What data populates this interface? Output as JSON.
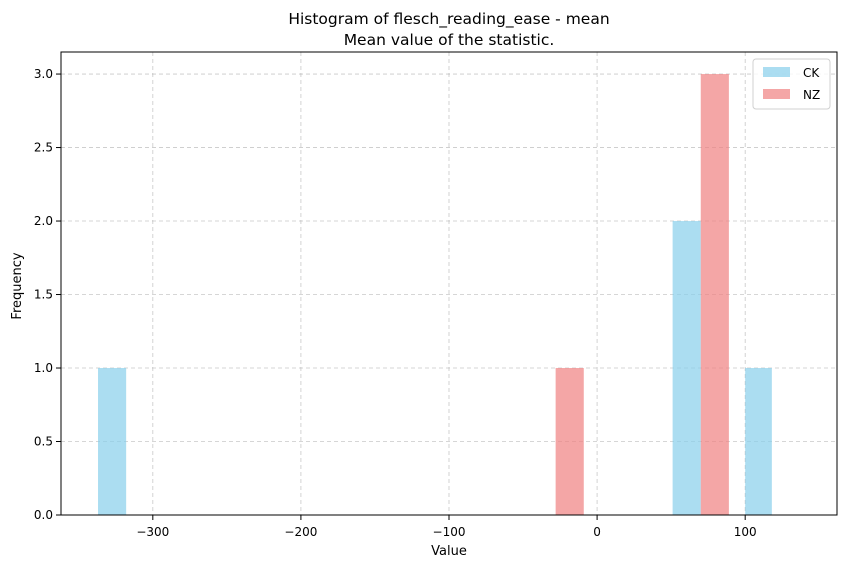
{
  "chart_data": {
    "type": "bar",
    "title": "Histogram of flesch_reading_ease - mean",
    "subtitle": "Mean value of the statistic.",
    "xlabel": "Value",
    "ylabel": "Frequency",
    "xlim": [
      -362,
      162
    ],
    "ylim": [
      0,
      3.15
    ],
    "xticks": [
      -300,
      -200,
      -100,
      0,
      100
    ],
    "xtick_labels": [
      "−300",
      "−200",
      "−100",
      "0",
      "100"
    ],
    "yticks": [
      0,
      0.5,
      1.0,
      1.5,
      2.0,
      2.5,
      3.0
    ],
    "ytick_labels": [
      "0.0",
      "0.5",
      "1.0",
      "1.5",
      "2.0",
      "2.5",
      "3.0"
    ],
    "grid": true,
    "legend_position": "top-right",
    "series": [
      {
        "name": "CK",
        "color": "#87ceeb",
        "bins": [
          {
            "x0": -337,
            "x1": -318,
            "value": 1
          },
          {
            "x0": 51,
            "x1": 70,
            "value": 2
          },
          {
            "x0": 100,
            "x1": 118,
            "value": 1
          }
        ]
      },
      {
        "name": "NZ",
        "color": "#f08080",
        "bins": [
          {
            "x0": -28,
            "x1": -9,
            "value": 1
          },
          {
            "x0": 70,
            "x1": 89,
            "value": 3
          }
        ]
      }
    ]
  }
}
